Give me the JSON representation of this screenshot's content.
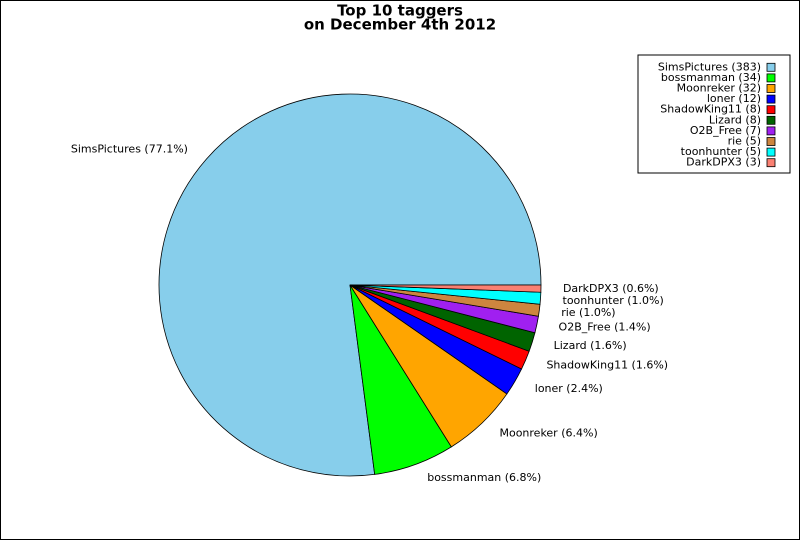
{
  "chart_data": {
    "type": "pie",
    "title": "Top 10 taggers",
    "subtitle": "on December 4th 2012",
    "categories": [
      "SimsPictures",
      "bossmanman",
      "Moonreker",
      "loner",
      "ShadowKing11",
      "Lizard",
      "O2B_Free",
      "rie",
      "toonhunter",
      "DarkDPX3"
    ],
    "values": [
      383,
      34,
      32,
      12,
      8,
      8,
      7,
      5,
      5,
      3
    ],
    "legend_labels": [
      "SimsPictures (383)",
      "bossmanman (34)",
      "Moonreker (32)",
      "loner (12)",
      "ShadowKing11 (8)",
      "Lizard (8)",
      "O2B_Free (7)",
      "rie (5)",
      "toonhunter (5)",
      "DarkDPX3 (3)"
    ],
    "slice_labels": [
      "SimsPictures (77.1%)",
      "bossmanman (6.8%)",
      "Moonreker (6.4%)",
      "loner (2.4%)",
      "ShadowKing11 (1.6%)",
      "Lizard (1.6%)",
      "O2B_Free (1.4%)",
      "rie (1.0%)",
      "toonhunter (1.0%)",
      "DarkDPX3 (0.6%)"
    ],
    "colors": [
      "#87ceeb",
      "#00ff00",
      "#ffa500",
      "#0000ff",
      "#ff0000",
      "#006400",
      "#a020f0",
      "#cd853f",
      "#00ffff",
      "#fa8072"
    ],
    "legend": "upper right"
  }
}
